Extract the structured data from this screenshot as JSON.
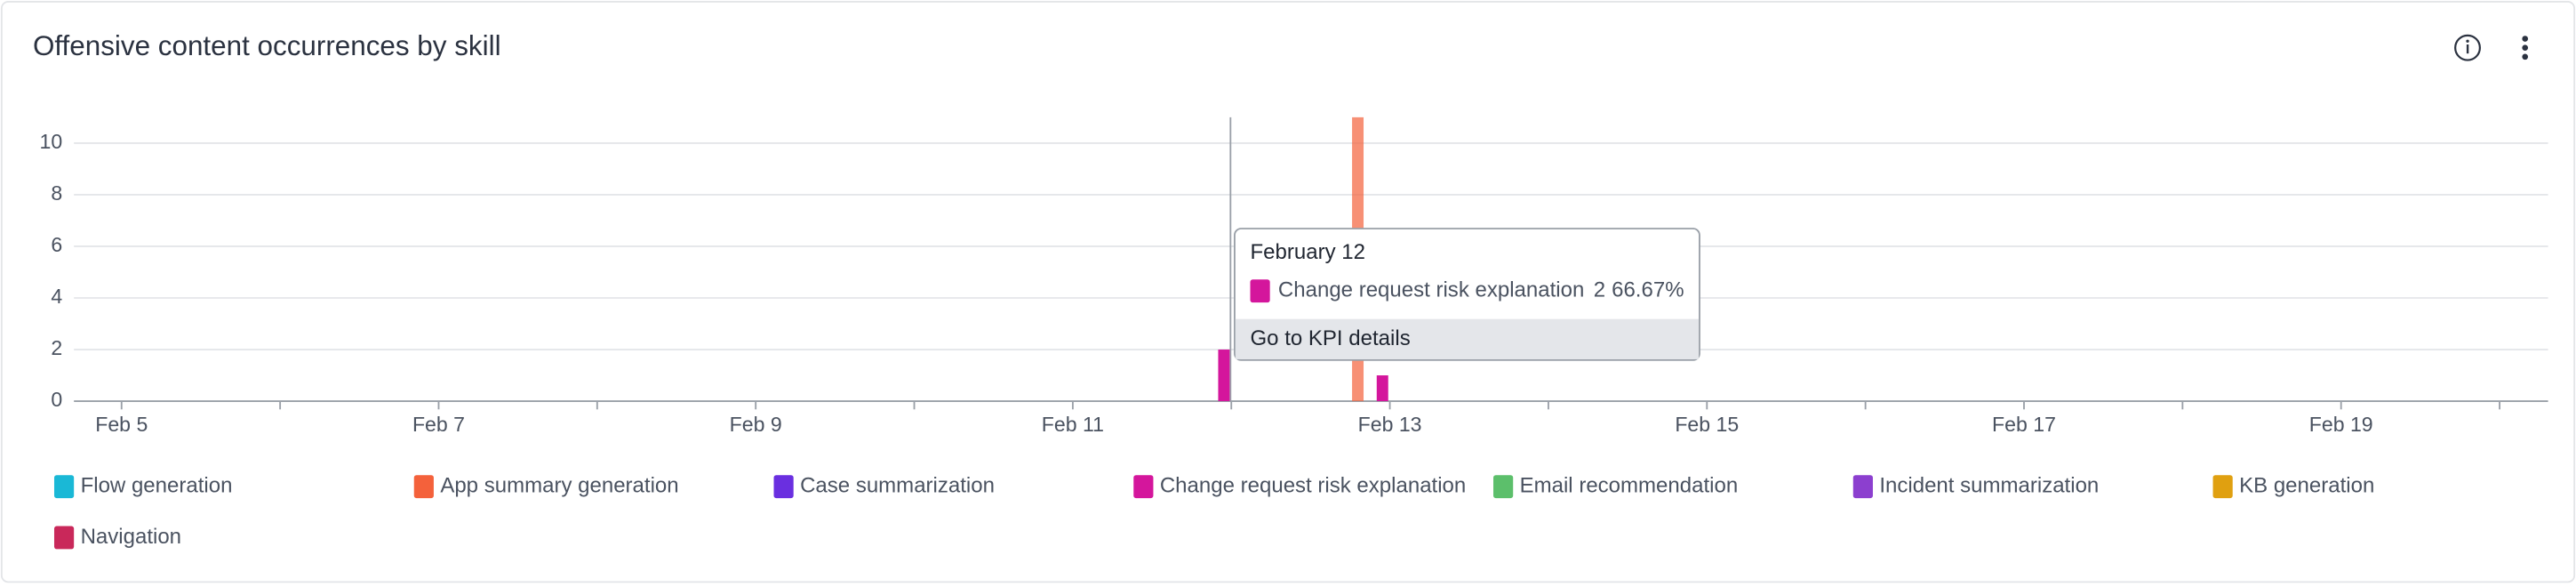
{
  "chart_data": {
    "type": "bar",
    "title": "Offensive content occurrences by skill",
    "categories": [
      "Feb 5",
      null,
      "Feb 7",
      null,
      "Feb 9",
      null,
      "Feb 11",
      null,
      "Feb 13",
      null,
      "Feb 15",
      null,
      "Feb 17",
      null,
      "Feb 19",
      null
    ],
    "ylim": [
      0,
      11
    ],
    "yticks": [
      0,
      2,
      4,
      6,
      8,
      10
    ],
    "grid": true,
    "series": [
      {
        "name": "Flow generation",
        "color": "#1ab8d6",
        "values": [
          null,
          null,
          null,
          null,
          null,
          null,
          null,
          null,
          null,
          null,
          null,
          null,
          null,
          null,
          null,
          null
        ]
      },
      {
        "name": "App summary generation",
        "color": "#f4613b",
        "values": [
          null,
          null,
          null,
          null,
          null,
          null,
          null,
          null,
          11,
          null,
          null,
          null,
          null,
          null,
          null,
          null
        ]
      },
      {
        "name": "Case summarization",
        "color": "#6a2fe0",
        "values": [
          null,
          null,
          null,
          null,
          null,
          null,
          null,
          null,
          null,
          null,
          null,
          null,
          null,
          null,
          null,
          null
        ]
      },
      {
        "name": "Change request risk explanation",
        "color": "#d4169c",
        "values": [
          null,
          null,
          null,
          null,
          null,
          null,
          null,
          2,
          1,
          null,
          null,
          null,
          null,
          null,
          null,
          null
        ]
      },
      {
        "name": "Email recommendation",
        "color": "#5cbf6b",
        "values": [
          null,
          null,
          null,
          null,
          null,
          null,
          null,
          null,
          null,
          null,
          null,
          null,
          null,
          null,
          null,
          null
        ]
      },
      {
        "name": "Incident summarization",
        "color": "#8c3fcf",
        "values": [
          null,
          null,
          null,
          null,
          null,
          null,
          null,
          null,
          null,
          null,
          null,
          null,
          null,
          null,
          null,
          null
        ]
      },
      {
        "name": "KB generation",
        "color": "#e0a010",
        "values": [
          null,
          null,
          null,
          null,
          null,
          null,
          null,
          null,
          null,
          null,
          null,
          null,
          null,
          null,
          null,
          null
        ]
      },
      {
        "name": "Navigation",
        "color": "#c9285a",
        "values": [
          null,
          null,
          null,
          null,
          null,
          null,
          null,
          null,
          null,
          null,
          null,
          null,
          null,
          null,
          null,
          null
        ]
      }
    ],
    "tooltip": {
      "title": "February 12",
      "percent": "66.67%",
      "link": "Go to KPI details"
    }
  }
}
